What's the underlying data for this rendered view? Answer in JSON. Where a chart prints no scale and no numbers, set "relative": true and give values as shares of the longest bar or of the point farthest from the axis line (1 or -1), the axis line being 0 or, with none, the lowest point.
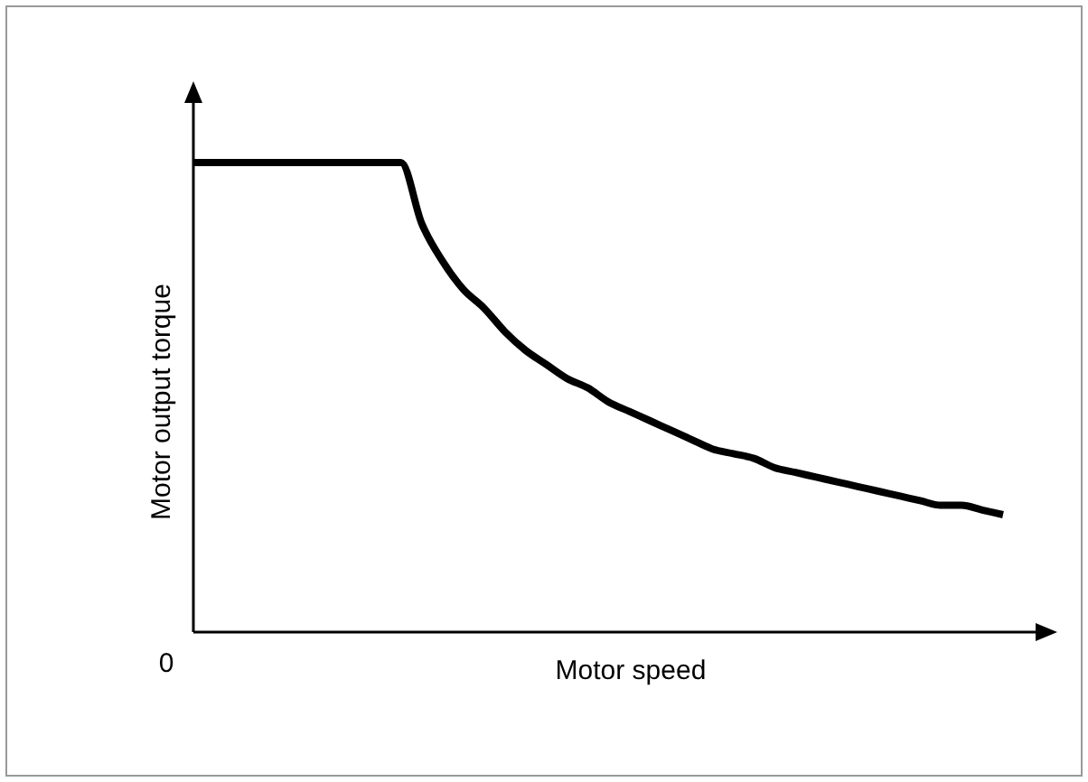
{
  "chart_data": {
    "type": "line",
    "relative": true,
    "xlabel": "Motor speed",
    "ylabel": "Motor output torque",
    "annotations": [
      "0"
    ],
    "categories": [
      null,
      null,
      null,
      null,
      null,
      null,
      null,
      null,
      null,
      null,
      null,
      null,
      null,
      null,
      null,
      null,
      null,
      null,
      null,
      null,
      null,
      null,
      null,
      null,
      null,
      null,
      null,
      null,
      null,
      null,
      null,
      null,
      null,
      null,
      null,
      null,
      null,
      null,
      null,
      null
    ],
    "series": [
      {
        "color": "#000000",
        "values": [
          1,
          1,
          1,
          1,
          1,
          1,
          1,
          1,
          1,
          1,
          1,
          0.87,
          0.79,
          0.73,
          0.69,
          0.64,
          0.6,
          0.57,
          0.54,
          0.52,
          0.49,
          0.47,
          0.45,
          0.43,
          0.41,
          0.39,
          0.38,
          0.37,
          0.35,
          0.34,
          0.33,
          0.32,
          0.31,
          0.3,
          0.29,
          0.28,
          0.27,
          0.27,
          0.26,
          0.25
        ]
      }
    ]
  }
}
